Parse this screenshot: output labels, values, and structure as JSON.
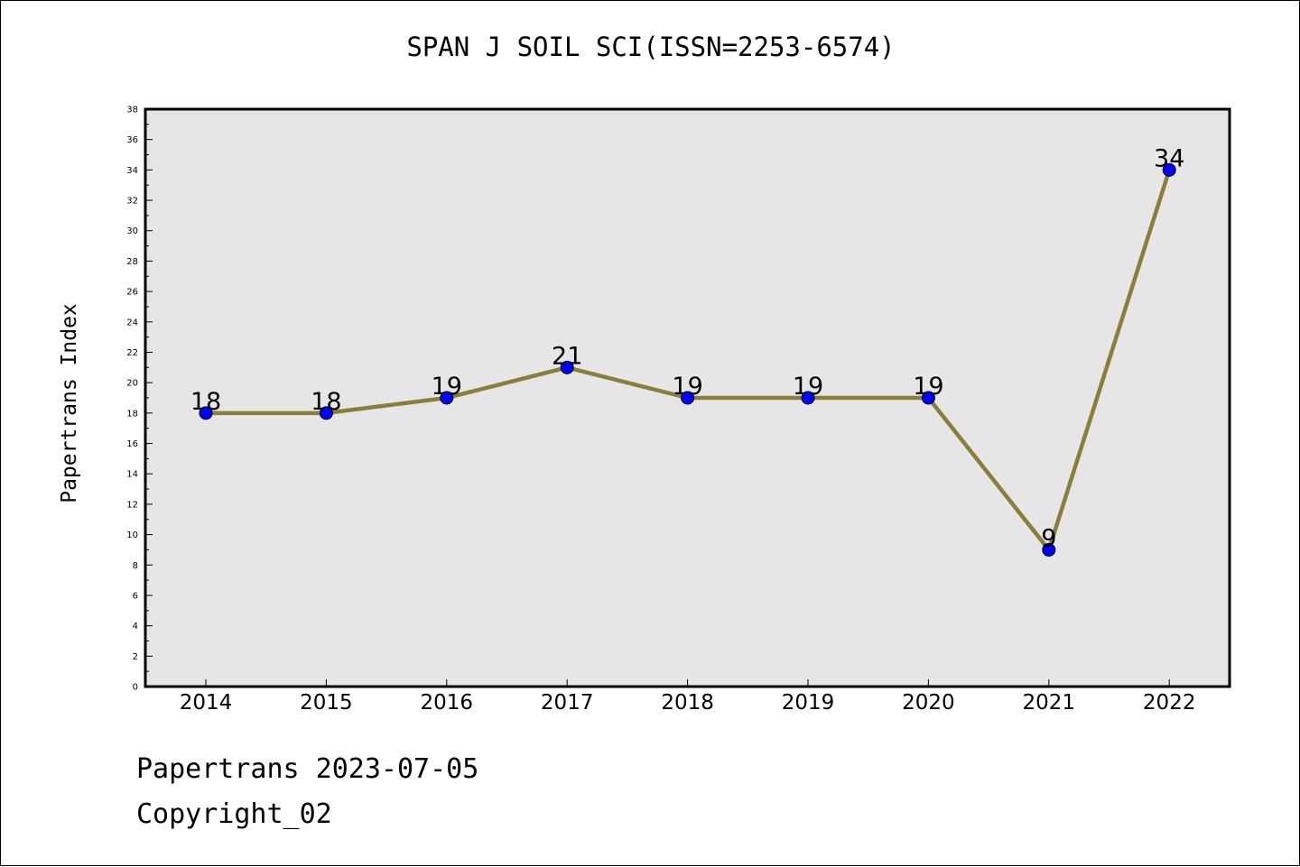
{
  "footer": {
    "line1": "Papertrans 2023-07-05",
    "line2": "Copyright_02"
  },
  "chart_data": {
    "type": "line",
    "title": "SPAN J SOIL SCI(ISSN=2253-6574)",
    "xlabel": "",
    "ylabel": "Papertrans Index",
    "categories": [
      "2014",
      "2015",
      "2016",
      "2017",
      "2018",
      "2019",
      "2020",
      "2021",
      "2022"
    ],
    "series": [
      {
        "values": [
          18,
          18,
          19,
          21,
          19,
          19,
          19,
          9,
          34
        ]
      }
    ],
    "ylim": [
      0,
      38
    ],
    "yticks": [
      0,
      2,
      4,
      6,
      8,
      10,
      12,
      14,
      16,
      18,
      20,
      22,
      24,
      26,
      28,
      30,
      32,
      34,
      36,
      38
    ],
    "data_labels": true,
    "grid": false,
    "colors": {
      "line": "#8b7d3a",
      "marker": "#0000ff",
      "plot_background": "#e6e6e6"
    }
  }
}
